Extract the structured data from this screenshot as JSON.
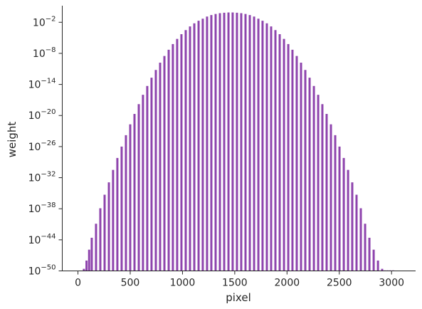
{
  "chart_data": {
    "type": "bar",
    "title": "",
    "xlabel": "pixel",
    "ylabel": "weight",
    "y_scale": "log",
    "xlim": [
      -150,
      3230
    ],
    "ylim_exponent": [
      -50,
      1.2
    ],
    "x_ticks": [
      0,
      500,
      1000,
      1500,
      2000,
      2500,
      3000
    ],
    "x_tick_labels": [
      "0",
      "500",
      "1000",
      "1500",
      "2000",
      "2500",
      "3000"
    ],
    "y_tick_exponents": [
      -50,
      -44,
      -38,
      -32,
      -26,
      -20,
      -14,
      -8,
      -2
    ],
    "y_tick_base": "10",
    "y_tick_exponent_labels": [
      "−50",
      "−44",
      "−38",
      "−32",
      "−26",
      "−20",
      "−14",
      "−8",
      "−2"
    ],
    "grid": false,
    "color": "#8e44ad",
    "series": [
      {
        "x": [
          57,
          82,
          107,
          132,
          173,
          214,
          255,
          296,
          336,
          377,
          418,
          459,
          500,
          541,
          582,
          622,
          663,
          704,
          745,
          786,
          827,
          868,
          908,
          949,
          990,
          1031,
          1072,
          1113,
          1154,
          1194,
          1235,
          1276,
          1317,
          1358,
          1399,
          1440,
          1480,
          1521,
          1562,
          1603,
          1644,
          1685,
          1726,
          1766,
          1807,
          1848,
          1889,
          1930,
          1971,
          2012,
          2052,
          2093,
          2134,
          2175,
          2216,
          2257,
          2298,
          2338,
          2379,
          2420,
          2461,
          2502,
          2543,
          2584,
          2624,
          2665,
          2706,
          2747,
          2788,
          2829,
          2870,
          2910,
          2936,
          2962,
          2988,
          3015
        ],
        "log10_y": [
          -49.6,
          -48.0,
          -45.9,
          -43.6,
          -40.9,
          -37.9,
          -35.3,
          -32.9,
          -30.5,
          -28.2,
          -26.0,
          -23.8,
          -21.7,
          -19.7,
          -17.8,
          -16.0,
          -14.3,
          -12.7,
          -11.2,
          -9.8,
          -8.5,
          -7.3,
          -6.2,
          -5.2,
          -4.3,
          -3.5,
          -2.8,
          -2.2,
          -1.7,
          -1.3,
          -0.9,
          -0.6,
          -0.4,
          -0.25,
          -0.15,
          -0.1,
          -0.1,
          -0.15,
          -0.25,
          -0.4,
          -0.6,
          -0.9,
          -1.3,
          -1.7,
          -2.2,
          -2.8,
          -3.5,
          -4.3,
          -5.2,
          -6.2,
          -7.3,
          -8.5,
          -9.8,
          -11.2,
          -12.7,
          -14.3,
          -16.0,
          -17.8,
          -19.7,
          -21.7,
          -23.8,
          -26.0,
          -28.2,
          -30.5,
          -32.9,
          -35.3,
          -37.9,
          -40.9,
          -43.6,
          -45.9,
          -48.0,
          -49.6,
          -49.9,
          -49.9,
          -49.9,
          -49.9
        ]
      }
    ]
  }
}
